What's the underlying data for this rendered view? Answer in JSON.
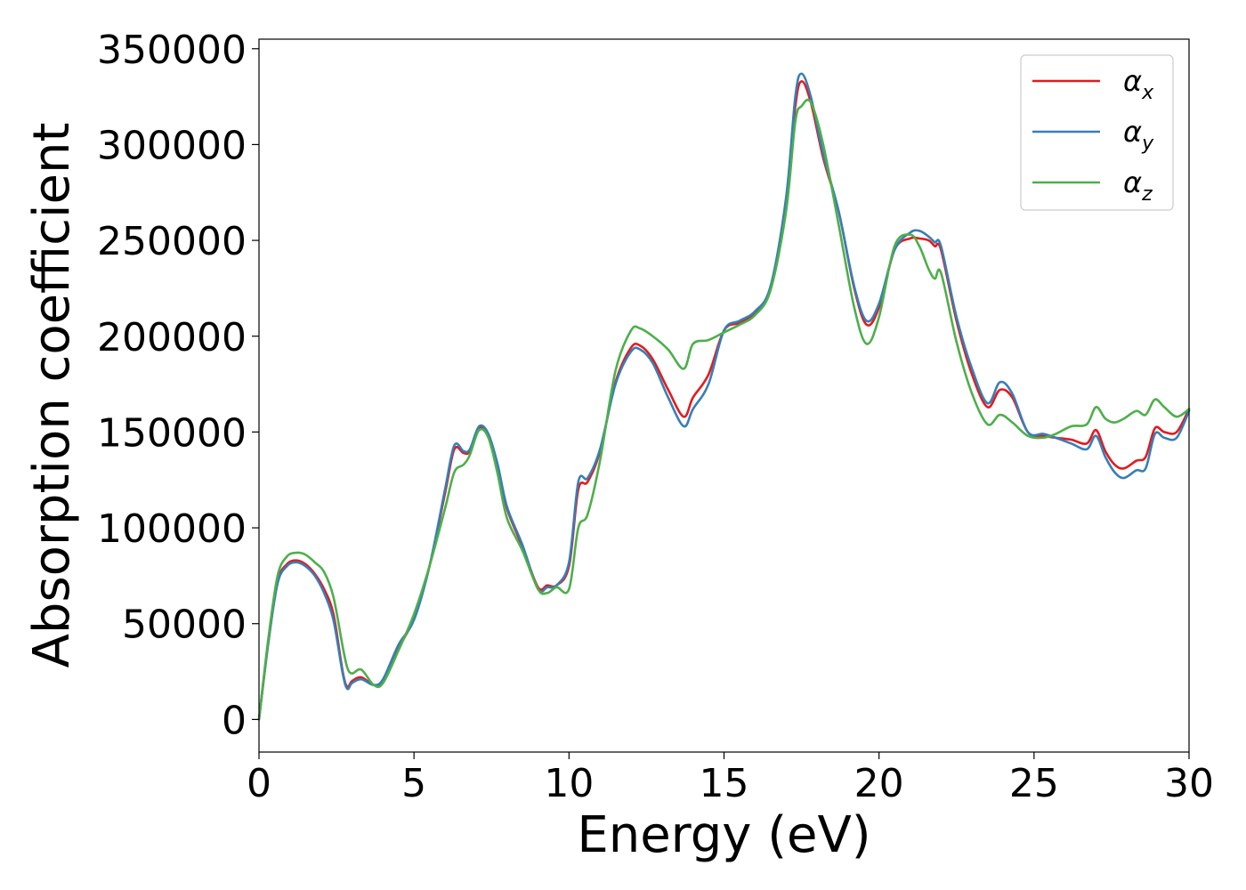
{
  "chart_data": {
    "type": "line",
    "title": "",
    "xlabel": "Energy (eV)",
    "ylabel": "Absorption coefficient",
    "xlim": [
      0,
      30
    ],
    "ylim": [
      -17000,
      355000
    ],
    "xticks": [
      0,
      5,
      10,
      15,
      20,
      25,
      30
    ],
    "xtick_labels": [
      "0",
      "5",
      "10",
      "15",
      "20",
      "25",
      "30"
    ],
    "yticks": [
      0,
      50000,
      100000,
      150000,
      200000,
      250000,
      300000,
      350000
    ],
    "ytick_labels": [
      "0",
      "50000",
      "100000",
      "150000",
      "200000",
      "250000",
      "300000",
      "350000"
    ],
    "grid": false,
    "legend_position": "top-right",
    "series": [
      {
        "name": "α_x",
        "legend_base": "α",
        "legend_sub": "x",
        "color": "#e41a1c",
        "x": [
          0,
          0.3,
          0.6,
          0.9,
          1.2,
          1.5,
          1.8,
          2.1,
          2.4,
          2.7,
          2.85,
          3.0,
          3.3,
          3.7,
          4.0,
          4.5,
          5.0,
          5.5,
          6.0,
          6.3,
          6.6,
          6.8,
          7.1,
          7.4,
          7.7,
          8.0,
          8.5,
          9.0,
          9.3,
          9.6,
          10.0,
          10.3,
          10.6,
          11.0,
          11.5,
          12.0,
          12.3,
          12.7,
          13.2,
          13.7,
          14.0,
          14.5,
          15.0,
          15.5,
          16.0,
          16.5,
          17.0,
          17.3,
          17.5,
          17.8,
          18.2,
          18.7,
          19.2,
          19.6,
          20.0,
          20.5,
          21.0,
          21.3,
          21.6,
          21.8,
          22.0,
          22.5,
          23.0,
          23.5,
          23.9,
          24.3,
          24.8,
          25.3,
          25.7,
          26.2,
          26.7,
          27.0,
          27.3,
          27.6,
          27.9,
          28.3,
          28.6,
          28.9,
          29.2,
          29.6,
          30.0
        ],
        "y": [
          0,
          40000,
          72000,
          81000,
          83000,
          81000,
          76000,
          68000,
          55000,
          25000,
          17000,
          20000,
          22000,
          18000,
          20000,
          37000,
          53000,
          80000,
          118000,
          141000,
          139000,
          140000,
          152000,
          148000,
          132000,
          110000,
          90000,
          69000,
          70000,
          70000,
          80000,
          120000,
          124000,
          140000,
          176000,
          194000,
          195000,
          188000,
          172000,
          158000,
          168000,
          180000,
          203000,
          207000,
          212000,
          225000,
          270000,
          320000,
          333000,
          322000,
          293000,
          265000,
          225000,
          206000,
          215000,
          245000,
          251000,
          251000,
          250000,
          247000,
          245000,
          208000,
          180000,
          163000,
          172000,
          168000,
          150000,
          148000,
          147000,
          146000,
          144000,
          151000,
          140000,
          133000,
          131000,
          135000,
          137000,
          152000,
          150000,
          150000,
          162000
        ]
      },
      {
        "name": "α_y",
        "legend_base": "α",
        "legend_sub": "y",
        "color": "#377eb8",
        "x": [
          0,
          0.3,
          0.6,
          0.9,
          1.2,
          1.5,
          1.8,
          2.1,
          2.4,
          2.7,
          2.85,
          3.0,
          3.3,
          3.7,
          4.0,
          4.5,
          5.0,
          5.5,
          6.0,
          6.3,
          6.6,
          6.8,
          7.1,
          7.4,
          7.7,
          8.0,
          8.5,
          9.0,
          9.3,
          9.6,
          10.0,
          10.3,
          10.6,
          11.0,
          11.5,
          12.0,
          12.3,
          12.7,
          13.2,
          13.7,
          14.0,
          14.5,
          15.0,
          15.5,
          16.0,
          16.5,
          17.0,
          17.3,
          17.5,
          17.8,
          18.2,
          18.7,
          19.2,
          19.6,
          20.0,
          20.5,
          21.0,
          21.3,
          21.6,
          21.8,
          22.0,
          22.5,
          23.0,
          23.5,
          23.9,
          24.3,
          24.8,
          25.3,
          25.7,
          26.2,
          26.7,
          27.0,
          27.3,
          27.6,
          27.9,
          28.3,
          28.6,
          28.9,
          29.2,
          29.6,
          30.0
        ],
        "y": [
          0,
          40000,
          71000,
          80000,
          82000,
          80000,
          75000,
          66000,
          52000,
          24000,
          16000,
          19000,
          21000,
          18000,
          21000,
          39000,
          52000,
          80000,
          120000,
          143000,
          140000,
          141000,
          153000,
          149000,
          133000,
          111000,
          91000,
          68000,
          69000,
          70000,
          82000,
          124000,
          126000,
          141000,
          175000,
          192000,
          193000,
          186000,
          168000,
          153000,
          162000,
          175000,
          203000,
          208000,
          213000,
          226000,
          272000,
          325000,
          337000,
          325000,
          295000,
          265000,
          226000,
          208000,
          217000,
          245000,
          254000,
          255000,
          252000,
          249000,
          247000,
          210000,
          183000,
          165000,
          176000,
          170000,
          150000,
          149000,
          147000,
          144000,
          141000,
          148000,
          137000,
          129000,
          126000,
          130000,
          131000,
          149000,
          147000,
          147000,
          161000
        ]
      },
      {
        "name": "α_z",
        "legend_base": "α",
        "legend_sub": "z",
        "color": "#4daf4a",
        "x": [
          0,
          0.3,
          0.6,
          0.9,
          1.2,
          1.5,
          1.8,
          2.1,
          2.4,
          2.7,
          2.85,
          3.0,
          3.3,
          3.7,
          4.0,
          4.5,
          5.0,
          5.5,
          6.0,
          6.3,
          6.6,
          6.8,
          7.1,
          7.4,
          7.7,
          8.0,
          8.5,
          9.0,
          9.3,
          9.6,
          10.0,
          10.3,
          10.6,
          11.0,
          11.5,
          12.0,
          12.3,
          12.7,
          13.2,
          13.7,
          14.0,
          14.5,
          15.0,
          15.5,
          16.0,
          16.5,
          17.0,
          17.3,
          17.5,
          17.8,
          18.2,
          18.7,
          19.2,
          19.6,
          20.0,
          20.5,
          21.0,
          21.3,
          21.6,
          21.8,
          22.0,
          22.5,
          23.0,
          23.5,
          23.9,
          24.3,
          24.8,
          25.3,
          25.7,
          26.2,
          26.7,
          27.0,
          27.3,
          27.6,
          27.9,
          28.3,
          28.6,
          28.9,
          29.2,
          29.6,
          30.0
        ],
        "y": [
          0,
          42000,
          75000,
          85000,
          87000,
          86000,
          82000,
          77000,
          64000,
          38000,
          27000,
          24000,
          26000,
          18000,
          19000,
          36000,
          55000,
          80000,
          110000,
          129000,
          133000,
          138000,
          151000,
          147000,
          128000,
          105000,
          88000,
          68000,
          66000,
          69000,
          68000,
          100000,
          107000,
          135000,
          182000,
          203000,
          204000,
          200000,
          193000,
          183000,
          196000,
          198000,
          202000,
          206000,
          211000,
          224000,
          265000,
          312000,
          320000,
          322000,
          300000,
          258000,
          215000,
          196000,
          210000,
          247000,
          253000,
          247000,
          235000,
          230000,
          233000,
          197000,
          170000,
          154000,
          159000,
          155000,
          148000,
          147000,
          149000,
          153000,
          154000,
          163000,
          157000,
          155000,
          157000,
          161000,
          159000,
          167000,
          163000,
          158000,
          162000
        ]
      }
    ]
  }
}
